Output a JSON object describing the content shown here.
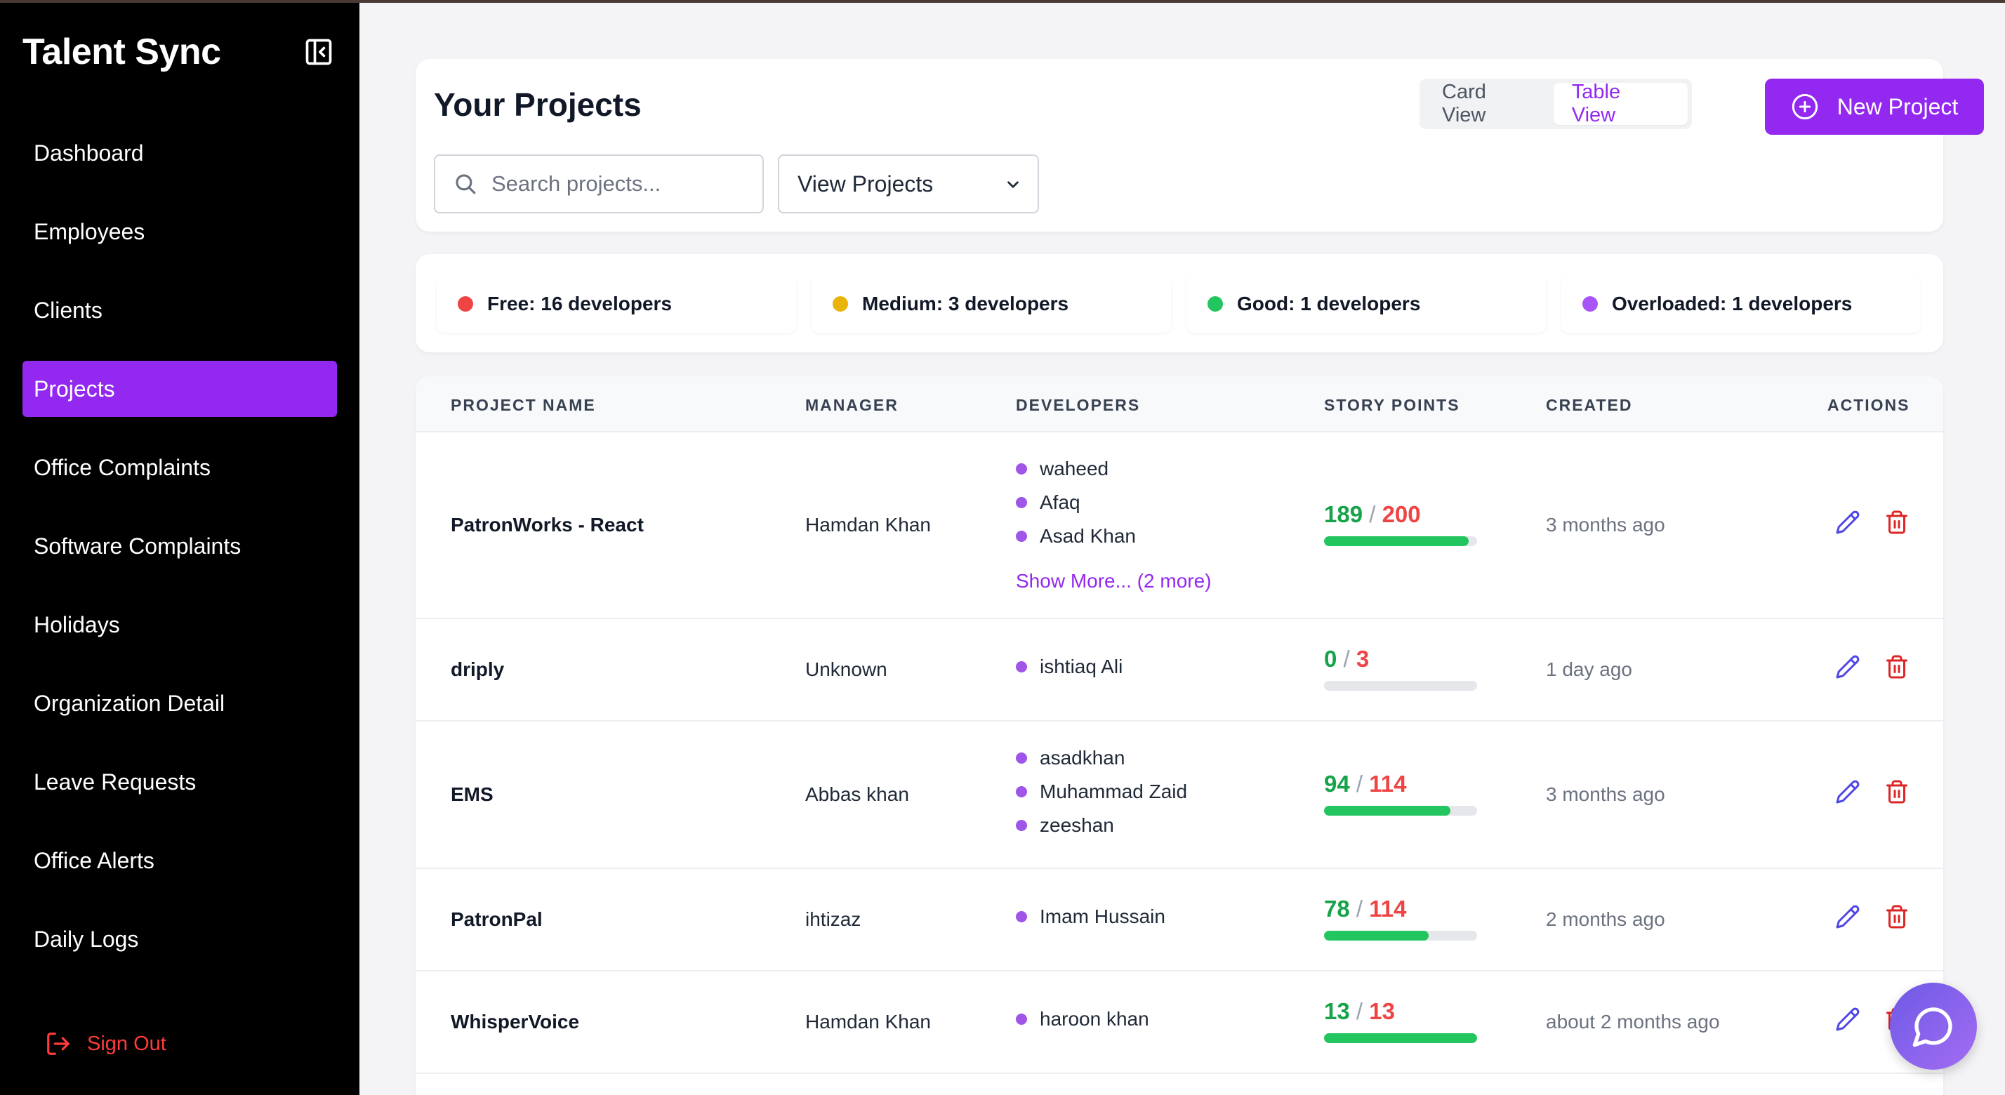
{
  "app": {
    "brand": "Talent Sync"
  },
  "sidebar": {
    "items": [
      {
        "label": "Dashboard",
        "active": false
      },
      {
        "label": "Employees",
        "active": false
      },
      {
        "label": "Clients",
        "active": false
      },
      {
        "label": "Projects",
        "active": true
      },
      {
        "label": "Office Complaints",
        "active": false
      },
      {
        "label": "Software Complaints",
        "active": false
      },
      {
        "label": "Holidays",
        "active": false
      },
      {
        "label": "Organization Detail",
        "active": false
      },
      {
        "label": "Leave Requests",
        "active": false
      },
      {
        "label": "Office Alerts",
        "active": false
      },
      {
        "label": "Daily Logs",
        "active": false
      }
    ],
    "signout_label": "Sign Out"
  },
  "header": {
    "title": "Your Projects",
    "search_placeholder": "Search projects...",
    "filter_selected": "View Projects",
    "view_toggle": {
      "card_label": "Card View",
      "table_label": "Table View",
      "active": "table"
    },
    "new_project_label": "New Project"
  },
  "stats": [
    {
      "label": "Free: 16 developers",
      "color": "#ef4444"
    },
    {
      "label": "Medium: 3 developers",
      "color": "#eab308"
    },
    {
      "label": "Good: 1 developers",
      "color": "#22c55e"
    },
    {
      "label": "Overloaded: 1 developers",
      "color": "#a855f7"
    }
  ],
  "table": {
    "columns": [
      "PROJECT NAME",
      "MANAGER",
      "DEVELOPERS",
      "STORY POINTS",
      "CREATED",
      "ACTIONS"
    ],
    "rows": [
      {
        "name": "PatronWorks - React",
        "manager": "Hamdan Khan",
        "developers": [
          "waheed",
          "Afaq",
          "Asad Khan"
        ],
        "show_more": "Show More... (2 more)",
        "points_done": "189",
        "points_total": "200",
        "created": "3 months ago"
      },
      {
        "name": "driply",
        "manager": "Unknown",
        "developers": [
          "ishtiaq Ali"
        ],
        "show_more": "",
        "points_done": "0",
        "points_total": "3",
        "created": "1 day ago"
      },
      {
        "name": "EMS",
        "manager": "Abbas khan",
        "developers": [
          "asadkhan",
          "Muhammad Zaid",
          "zeeshan"
        ],
        "show_more": "",
        "points_done": "94",
        "points_total": "114",
        "created": "3 months ago"
      },
      {
        "name": "PatronPal",
        "manager": "ihtizaz",
        "developers": [
          "Imam Hussain"
        ],
        "show_more": "",
        "points_done": "78",
        "points_total": "114",
        "created": "2 months ago"
      },
      {
        "name": "WhisperVoice",
        "manager": "Hamdan Khan",
        "developers": [
          "haroon khan"
        ],
        "show_more": "",
        "points_done": "13",
        "points_total": "13",
        "created": "about 2 months ago"
      }
    ]
  },
  "colors": {
    "accent": "#9328f0",
    "progress": "#22c55e",
    "done": "#16a34a",
    "total": "#ef4444"
  },
  "icons": {
    "edit": "pencil-icon",
    "delete": "trash-icon",
    "chat": "chat-bubble-icon",
    "search": "search-icon",
    "signout": "sign-out-icon",
    "collapse": "sidebar-collapse-icon",
    "new": "plus-circle-icon",
    "chevron": "chevron-down-icon"
  }
}
